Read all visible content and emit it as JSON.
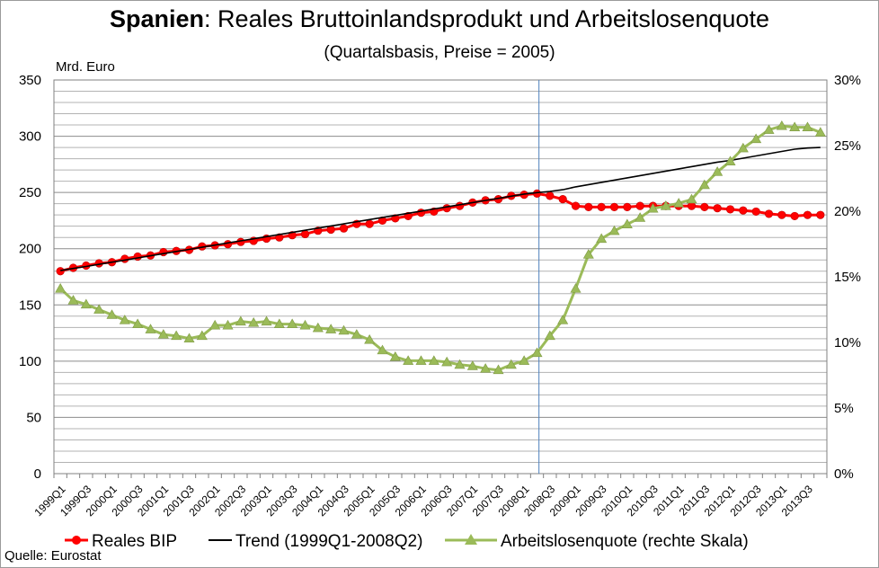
{
  "chart_data": {
    "type": "line",
    "title_bold": "Spanien",
    "title_rest": ": Reales Bruttoinlandsprodukt und Arbeitslosenquote",
    "subtitle": "(Quartalsbasis, Preise = 2005)",
    "ylabel_left": "Mrd. Euro",
    "ylim_left": [
      0,
      350
    ],
    "yticks_left": [
      0,
      50,
      100,
      150,
      200,
      250,
      300,
      350
    ],
    "ylim_right": [
      0,
      30
    ],
    "yticks_right": [
      "0%",
      "5%",
      "10%",
      "15%",
      "20%",
      "25%",
      "30%"
    ],
    "grid": true,
    "legend_position": "bottom",
    "source": "Quelle: Eurostat",
    "marker_line_label": "2008Q2",
    "x": [
      "1999Q1",
      "1999Q2",
      "1999Q3",
      "1999Q4",
      "2000Q1",
      "2000Q2",
      "2000Q3",
      "2000Q4",
      "2001Q1",
      "2001Q2",
      "2001Q3",
      "2001Q4",
      "2002Q1",
      "2002Q2",
      "2002Q3",
      "2002Q4",
      "2003Q1",
      "2003Q2",
      "2003Q3",
      "2003Q4",
      "2004Q1",
      "2004Q2",
      "2004Q3",
      "2004Q4",
      "2005Q1",
      "2005Q2",
      "2005Q3",
      "2005Q4",
      "2006Q1",
      "2006Q2",
      "2006Q3",
      "2006Q4",
      "2007Q1",
      "2007Q2",
      "2007Q3",
      "2007Q4",
      "2008Q1",
      "2008Q2",
      "2008Q3",
      "2008Q4",
      "2009Q1",
      "2009Q2",
      "2009Q3",
      "2009Q4",
      "2010Q1",
      "2010Q2",
      "2010Q3",
      "2010Q4",
      "2011Q1",
      "2011Q2",
      "2011Q3",
      "2011Q4",
      "2012Q1",
      "2012Q2",
      "2012Q3",
      "2012Q4",
      "2013Q1",
      "2013Q2",
      "2013Q3",
      "2013Q4"
    ],
    "x_tick_labels": [
      "1999Q1",
      "1999Q3",
      "2000Q1",
      "2000Q3",
      "2001Q1",
      "2001Q3",
      "2002Q1",
      "2002Q3",
      "2003Q1",
      "2003Q3",
      "2004Q1",
      "2004Q3",
      "2005Q1",
      "2005Q3",
      "2006Q1",
      "2006Q3",
      "2007Q1",
      "2007Q3",
      "2008Q1",
      "2008Q3",
      "2009Q1",
      "2009Q3",
      "2010Q1",
      "2010Q3",
      "2011Q1",
      "2011Q3",
      "2012Q1",
      "2012Q3",
      "2013Q1",
      "2013Q3"
    ],
    "series": [
      {
        "name": "Reales BIP",
        "axis": "left",
        "color": "#ff0000",
        "marker": "circle",
        "values": [
          180,
          183,
          185,
          187,
          188,
          191,
          193,
          194,
          197,
          198,
          199,
          202,
          203,
          204,
          206,
          207,
          209,
          210,
          212,
          213,
          216,
          217,
          218,
          222,
          222,
          225,
          227,
          229,
          232,
          233,
          236,
          238,
          241,
          243,
          244,
          247,
          248,
          249,
          247,
          244,
          238,
          237,
          237,
          237,
          237,
          238,
          238,
          238,
          238,
          238,
          237,
          236,
          235,
          234,
          233,
          231,
          230,
          229,
          230,
          230
        ]
      },
      {
        "name": "Trend (1999Q1-2008Q2)",
        "axis": "left",
        "color": "#000000",
        "marker": "none",
        "values": [
          180.5,
          182.4,
          184.2,
          186.1,
          188.0,
          189.9,
          191.8,
          193.7,
          195.6,
          197.5,
          199.4,
          201.3,
          203.2,
          205.1,
          207.0,
          208.8,
          210.7,
          212.6,
          214.5,
          216.4,
          218.3,
          220.2,
          222.1,
          224.0,
          225.9,
          227.8,
          229.6,
          231.5,
          233.4,
          235.3,
          237.2,
          239.1,
          241.0,
          242.9,
          244.8,
          246.7,
          248.6,
          249.9,
          250.9,
          252.4,
          255.0,
          257.0,
          259.0,
          261.0,
          263.0,
          265.0,
          267.0,
          269.0,
          271.0,
          273.0,
          275.0,
          277.0,
          278.5,
          280.5,
          282.5,
          284.5,
          286.5,
          288.5,
          289.5,
          290.0
        ]
      },
      {
        "name": "Arbeitslosenquote (rechte Skala)",
        "axis": "right",
        "color": "#9bbb59",
        "marker": "triangle",
        "values": [
          14.1,
          13.2,
          12.9,
          12.5,
          12.1,
          11.7,
          11.4,
          11.0,
          10.6,
          10.5,
          10.3,
          10.5,
          11.3,
          11.3,
          11.6,
          11.5,
          11.6,
          11.4,
          11.4,
          11.3,
          11.1,
          11.0,
          10.9,
          10.6,
          10.2,
          9.4,
          8.9,
          8.6,
          8.6,
          8.6,
          8.5,
          8.3,
          8.2,
          8.0,
          7.9,
          8.3,
          8.6,
          9.2,
          10.5,
          11.7,
          14.1,
          16.7,
          17.9,
          18.5,
          19.0,
          19.5,
          20.2,
          20.4,
          20.6,
          20.9,
          22.0,
          23.0,
          23.8,
          24.8,
          25.5,
          26.2,
          26.5,
          26.4,
          26.4,
          26.0
        ]
      }
    ]
  }
}
